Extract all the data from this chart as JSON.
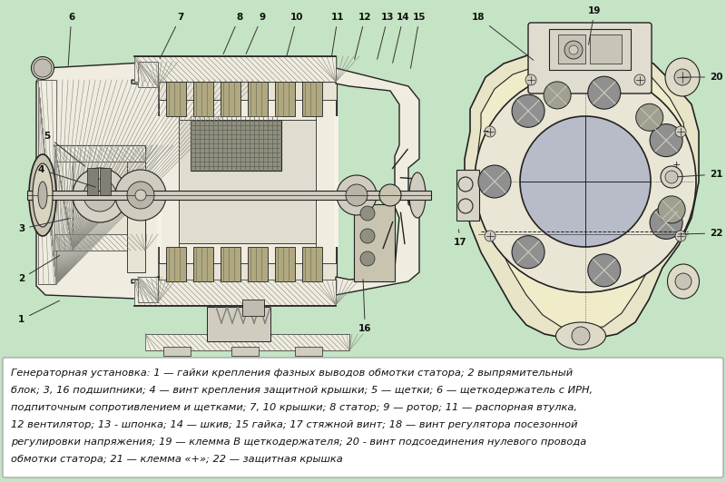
{
  "background_color": "#c5e3c5",
  "caption_bg": "#ffffff",
  "caption_text_line1": "Генераторная установка: 1 — гайки крепления фазных выводов обмотки статора; 2 выпрямительный",
  "caption_text_line2": "блок; 3, 16 подшипники; 4 — винт крепления защитной крышки; 5 — щетки; 6 — щеткодержатель с ИРН,",
  "caption_text_line3": "подпиточным сопротивлением и щетками; 7, 10 крышки; 8 статор; 9 — ротор; 11 — распорная втулка,",
  "caption_text_line4": "12 вентилятор; 13 - шпонка; 14 — шкив; 15 гайка; 17 стяжной винт; 18 — винт регулятора посезонной",
  "caption_text_line5": "регулировки напряжения; 19 — клемма В щеткодержателя; 20 - винт подсоединения нулевого провода",
  "caption_text_line6": "обмотки статора; 21 — клемма «+»; 22 — защитная крышка",
  "figsize": [
    8.0,
    5.31
  ],
  "dpi": 100
}
